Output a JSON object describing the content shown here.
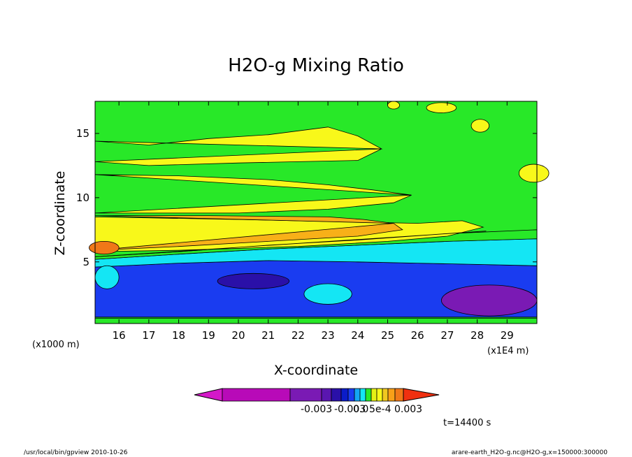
{
  "chart_data": {
    "type": "heatmap",
    "title": "H2O-g Mixing Ratio",
    "xlabel": "X-coordinate",
    "ylabel": "Z-coordinate",
    "x_unit": "(x1E4 m)",
    "y_unit": "(x1000 m)",
    "xlim": [
      15.2,
      30.0
    ],
    "ylim": [
      0.2,
      17.5
    ],
    "x_ticks": [
      16,
      17,
      18,
      19,
      20,
      21,
      22,
      23,
      24,
      25,
      26,
      27,
      28,
      29
    ],
    "y_ticks": [
      5,
      10,
      15
    ],
    "colorbar": {
      "colors": [
        "#d418c8",
        "#b80ab8",
        "#7a1ab4",
        "#5a16b0",
        "#2a10a8",
        "#0a1cc8",
        "#1a3cf0",
        "#14a6f4",
        "#14e6f4",
        "#28e828",
        "#e6f014",
        "#f8f81a",
        "#f0c820",
        "#f8a018",
        "#f07818",
        "#f03010"
      ],
      "labels": [
        "-0.003",
        "-0.003",
        "0.0",
        "5e-4",
        "0.003"
      ]
    },
    "bands": [
      {
        "name": "bottom-band",
        "color": "#28e828",
        "top": [
          [
            15.2,
            0.6
          ],
          [
            30.0,
            0.6
          ]
        ],
        "bottom": [
          [
            15.2,
            0.2
          ],
          [
            30.0,
            0.2
          ]
        ]
      },
      {
        "name": "violet-layer",
        "color": "#5a16b0",
        "top": [
          [
            15.2,
            2.2
          ],
          [
            19,
            2.0
          ],
          [
            22,
            1.6
          ],
          [
            25,
            1.4
          ],
          [
            26.5,
            2.2
          ],
          [
            30,
            3.6
          ]
        ],
        "bottom": [
          [
            15.2,
            0.7
          ],
          [
            30,
            0.7
          ]
        ]
      },
      {
        "name": "blue-layer",
        "color": "#1a3cf0",
        "top": [
          [
            15.2,
            4.6
          ],
          [
            18,
            4.9
          ],
          [
            21,
            5.1
          ],
          [
            24,
            5.0
          ],
          [
            26,
            4.9
          ],
          [
            28,
            4.8
          ],
          [
            30,
            4.7
          ]
        ],
        "bottom": [
          [
            15.2,
            0.7
          ],
          [
            30,
            0.7
          ]
        ]
      },
      {
        "name": "cyan-layer",
        "color": "#14e6f4",
        "top": [
          [
            15.2,
            5.2
          ],
          [
            18,
            5.6
          ],
          [
            21,
            6.0
          ],
          [
            24,
            6.3
          ],
          [
            27,
            6.6
          ],
          [
            30,
            6.8
          ]
        ],
        "bottom": [
          [
            15.2,
            4.6
          ],
          [
            18,
            4.9
          ],
          [
            21,
            5.1
          ],
          [
            24,
            5.0
          ],
          [
            26,
            4.9
          ],
          [
            28,
            4.8
          ],
          [
            30,
            4.7
          ]
        ]
      },
      {
        "name": "green-layer",
        "color": "#28e828",
        "top": [
          [
            15.2,
            5.4
          ],
          [
            18,
            5.8
          ],
          [
            21,
            6.3
          ],
          [
            24,
            6.7
          ],
          [
            27,
            7.2
          ],
          [
            30,
            7.5
          ]
        ],
        "bottom": [
          [
            15.2,
            5.2
          ],
          [
            18,
            5.6
          ],
          [
            21,
            6.0
          ],
          [
            24,
            6.3
          ],
          [
            27,
            6.6
          ],
          [
            30,
            6.8
          ]
        ]
      },
      {
        "name": "lower-yellow-layer",
        "color": "#f8f81a",
        "top": [
          [
            15.2,
            8.5
          ],
          [
            20,
            8.3
          ],
          [
            24,
            8.1
          ],
          [
            26,
            8.0
          ],
          [
            27.5,
            8.2
          ],
          [
            28.2,
            7.7
          ],
          [
            27,
            7.0
          ],
          [
            25,
            6.6
          ],
          [
            22,
            6.2
          ],
          [
            18,
            5.9
          ],
          [
            15.2,
            5.8
          ]
        ],
        "bottom": [
          [
            15.2,
            5.4
          ],
          [
            18,
            5.8
          ],
          [
            21,
            6.3
          ],
          [
            24,
            6.7
          ],
          [
            27,
            7.2
          ],
          [
            28.3,
            7.4
          ],
          [
            15.2,
            5.4
          ]
        ]
      },
      {
        "name": "orange-layer",
        "color": "#f8b018",
        "top": [
          [
            15.2,
            8.6
          ],
          [
            19,
            8.6
          ],
          [
            23,
            8.5
          ],
          [
            24.2,
            8.3
          ],
          [
            25.2,
            8.0
          ]
        ],
        "bottom": [
          [
            25.2,
            8.0
          ],
          [
            25.5,
            7.5
          ],
          [
            24,
            7.0
          ],
          [
            21,
            6.6
          ],
          [
            18,
            6.2
          ],
          [
            15.2,
            5.9
          ]
        ]
      },
      {
        "name": "upper-yellow-layer",
        "color": "#f8f81a",
        "top": [
          [
            15.2,
            11.8
          ],
          [
            18,
            11.7
          ],
          [
            21,
            11.4
          ],
          [
            23,
            11.0
          ],
          [
            24.5,
            10.6
          ],
          [
            25.8,
            10.2
          ]
        ],
        "bottom": [
          [
            25.8,
            10.2
          ],
          [
            25.2,
            9.6
          ],
          [
            23,
            9.1
          ],
          [
            20,
            8.8
          ],
          [
            15.2,
            8.8
          ]
        ]
      },
      {
        "name": "top-yellow-layer",
        "color": "#f8f81a",
        "top": [
          [
            15.2,
            14.4
          ],
          [
            17,
            14.1
          ],
          [
            19,
            14.6
          ],
          [
            21,
            14.9
          ],
          [
            23,
            15.5
          ],
          [
            24,
            14.8
          ],
          [
            24.8,
            13.8
          ]
        ],
        "bottom": [
          [
            24.8,
            13.8
          ],
          [
            24,
            12.9
          ],
          [
            22,
            12.8
          ],
          [
            20,
            12.7
          ],
          [
            17,
            12.5
          ],
          [
            15.2,
            12.8
          ]
        ]
      }
    ],
    "blobs": [
      {
        "name": "top-right-yellow-blob-1",
        "color": "#f8f81a",
        "cx": 26.8,
        "cy": 17.0,
        "rx": 0.5,
        "ry": 0.4
      },
      {
        "name": "top-right-yellow-blob-2",
        "color": "#f8f81a",
        "cx": 28.1,
        "cy": 15.6,
        "rx": 0.3,
        "ry": 0.5
      },
      {
        "name": "top-yellow-blob-3",
        "color": "#f8f81a",
        "cx": 25.2,
        "cy": 17.2,
        "rx": 0.2,
        "ry": 0.3
      },
      {
        "name": "right-edge-yellow-blob",
        "color": "#f8f81a",
        "cx": 29.9,
        "cy": 11.9,
        "rx": 0.5,
        "ry": 0.7
      },
      {
        "name": "left-orange-blob",
        "color": "#f07818",
        "cx": 15.5,
        "cy": 6.1,
        "rx": 0.5,
        "ry": 0.5
      },
      {
        "name": "left-cyan-blob",
        "color": "#14e6f4",
        "cx": 15.6,
        "cy": 3.8,
        "rx": 0.4,
        "ry": 0.9
      },
      {
        "name": "mid-cyan-blob",
        "color": "#14e6f4",
        "cx": 23.0,
        "cy": 2.5,
        "rx": 0.8,
        "ry": 0.8
      },
      {
        "name": "right-violet-blob",
        "color": "#7a1ab4",
        "cx": 28.4,
        "cy": 2.0,
        "rx": 1.6,
        "ry": 1.2
      },
      {
        "name": "dark-blue-blob",
        "color": "#2a10a8",
        "cx": 20.5,
        "cy": 3.5,
        "rx": 1.2,
        "ry": 0.6
      }
    ],
    "background_color": "#28e828"
  },
  "time_label": "t=14400 s",
  "footer": {
    "left": "/usr/local/bin/gpview   2010-10-26",
    "right": "arare-earth_H2O-g.nc@H2O-g,x=150000:300000"
  }
}
